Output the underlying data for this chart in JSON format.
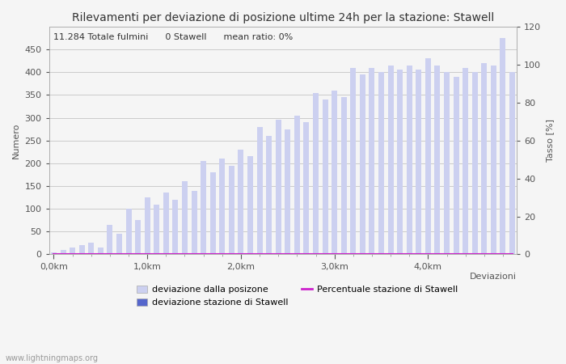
{
  "title": "Rilevamenti per deviazione di posizione ultime 24h per la stazione: Stawell",
  "xlabel": "Deviazioni",
  "ylabel_left": "Numero",
  "ylabel_right": "Tasso [%]",
  "annotation": "11.284 Totale fulmini      0 Stawell      mean ratio: 0%",
  "watermark": "www.lightningmaps.org",
  "ylim_left": [
    0,
    500
  ],
  "ylim_right": [
    0,
    120
  ],
  "yticks_left": [
    0,
    50,
    100,
    150,
    200,
    250,
    300,
    350,
    400,
    450
  ],
  "yticks_right": [
    0,
    20,
    40,
    60,
    80,
    100,
    120
  ],
  "n_bars": 50,
  "bar_color_light": "#ccd0f0",
  "bar_color_dark": "#5566cc",
  "line_color": "#cc22cc",
  "background_color": "#f5f5f5",
  "grid_color": "#bbbbbb",
  "legend_label_light": "deviazione dalla posizone",
  "legend_label_dark": "deviazione stazione di Stawell",
  "legend_label_line": "Percentuale stazione di Stawell",
  "title_fontsize": 10,
  "label_fontsize": 8,
  "tick_fontsize": 8,
  "annotation_fontsize": 8,
  "light_bars": [
    5,
    10,
    15,
    20,
    25,
    15,
    65,
    45,
    100,
    75,
    125,
    110,
    135,
    120,
    160,
    140,
    205,
    180,
    210,
    195,
    230,
    215,
    280,
    260,
    295,
    275,
    305,
    290,
    355,
    340,
    360,
    345,
    410,
    395,
    410,
    400,
    415,
    405,
    415,
    405,
    430,
    415,
    400,
    390,
    410,
    400,
    420,
    415,
    475,
    400
  ],
  "dark_bars": [
    0,
    0,
    0,
    0,
    0,
    0,
    0,
    0,
    0,
    0,
    0,
    0,
    0,
    0,
    0,
    0,
    0,
    0,
    0,
    0,
    0,
    0,
    0,
    0,
    0,
    0,
    0,
    0,
    0,
    0,
    0,
    0,
    0,
    0,
    0,
    0,
    0,
    0,
    0,
    0,
    0,
    0,
    0,
    0,
    0,
    0,
    0,
    0,
    0,
    0
  ],
  "pct_line": [
    0,
    0,
    0,
    0,
    0,
    0,
    0,
    0,
    0,
    0,
    0,
    0,
    0,
    0,
    0,
    0,
    0,
    0,
    0,
    0,
    0,
    0,
    0,
    0,
    0,
    0,
    0,
    0,
    0,
    0,
    0,
    0,
    0,
    0,
    0,
    0,
    0,
    0,
    0,
    0,
    0,
    0,
    0,
    0,
    0,
    0,
    0,
    0,
    0,
    0
  ]
}
